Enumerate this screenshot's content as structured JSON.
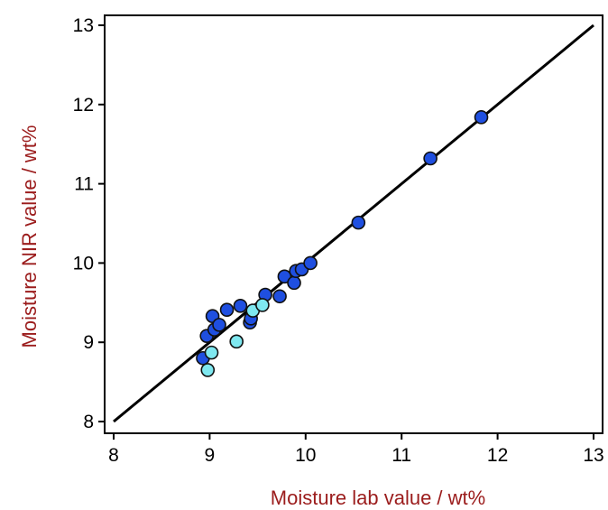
{
  "chart_data": {
    "type": "scatter",
    "title": "",
    "xlabel": "Moisture lab value / wt%",
    "ylabel": "Moisture NIR value / wt%",
    "xlim": [
      8,
      13
    ],
    "ylim": [
      8,
      13
    ],
    "x_ticks": [
      "8",
      "9",
      "10",
      "11",
      "12",
      "13"
    ],
    "y_ticks": [
      "8",
      "9",
      "10",
      "11",
      "12",
      "13"
    ],
    "grid": false,
    "legend": "none",
    "colors": {
      "axis_title": "#9b1c1c",
      "calibration": "#1f4fe0",
      "validation": "#7fe8f0",
      "marker_edge": "#111111",
      "line": "#000000"
    },
    "fit_line": {
      "x": [
        8,
        13
      ],
      "y": [
        8,
        13
      ]
    },
    "series": [
      {
        "marker_color": "#1f4fe0",
        "points": [
          [
            8.93,
            8.8
          ],
          [
            8.97,
            9.08
          ],
          [
            9.03,
            9.33
          ],
          [
            9.05,
            9.16
          ],
          [
            9.1,
            9.22
          ],
          [
            9.18,
            9.41
          ],
          [
            9.32,
            9.46
          ],
          [
            9.42,
            9.25
          ],
          [
            9.43,
            9.3
          ],
          [
            9.58,
            9.6
          ],
          [
            9.73,
            9.58
          ],
          [
            9.78,
            9.83
          ],
          [
            9.88,
            9.75
          ],
          [
            9.9,
            9.9
          ],
          [
            9.96,
            9.92
          ],
          [
            10.05,
            10.0
          ],
          [
            10.55,
            10.51
          ],
          [
            11.3,
            11.32
          ],
          [
            11.83,
            11.84
          ]
        ]
      },
      {
        "marker_color": "#7fe8f0",
        "points": [
          [
            8.98,
            8.65
          ],
          [
            9.02,
            8.87
          ],
          [
            9.28,
            9.01
          ],
          [
            9.45,
            9.4
          ],
          [
            9.55,
            9.47
          ]
        ]
      }
    ]
  }
}
